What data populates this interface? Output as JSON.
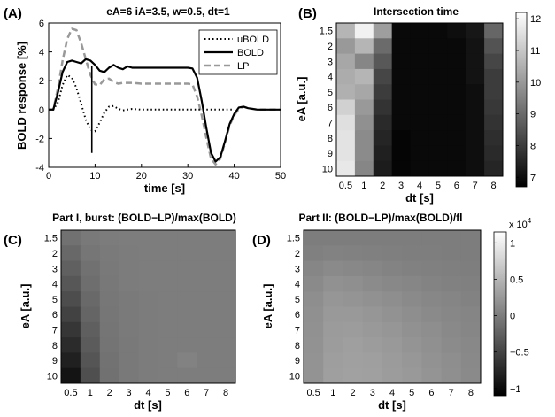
{
  "panels": {
    "A": {
      "label": "(A)",
      "chart_data": {
        "type": "line",
        "title": "eA=6 iA=3.5, w=0.5, dt=1",
        "xlabel": "time [s]",
        "ylabel": "BOLD response [%]",
        "xlim": [
          0,
          50
        ],
        "ylim": [
          -4,
          6
        ],
        "xticks": [
          "0",
          "10",
          "20",
          "30",
          "40",
          "50"
        ],
        "yticks": [
          "-4",
          "-2",
          "0",
          "2",
          "4",
          "6"
        ],
        "legend": "top-right",
        "stim_marker": {
          "x": 9.3,
          "y": [
            -3.0,
            3.0
          ]
        },
        "series": [
          {
            "name": "uBOLD",
            "style": "dotted",
            "color": "#000000",
            "points": [
              [
                0,
                0
              ],
              [
                1,
                0
              ],
              [
                2,
                0.5
              ],
              [
                3,
                1.7
              ],
              [
                4,
                2.4
              ],
              [
                5,
                2.2
              ],
              [
                6,
                1.5
              ],
              [
                7,
                0.4
              ],
              [
                8,
                -0.7
              ],
              [
                9,
                -1.4
              ],
              [
                10,
                -1.5
              ],
              [
                11,
                -0.9
              ],
              [
                12,
                -0.2
              ],
              [
                13,
                0.2
              ],
              [
                14,
                0.25
              ],
              [
                15,
                0.05
              ],
              [
                16,
                -0.05
              ],
              [
                18,
                0.05
              ],
              [
                20,
                0
              ],
              [
                25,
                0
              ],
              [
                30,
                0
              ],
              [
                35,
                0
              ],
              [
                40,
                0
              ]
            ]
          },
          {
            "name": "BOLD",
            "style": "solid",
            "color": "#000000",
            "points": [
              [
                0,
                0
              ],
              [
                1,
                0
              ],
              [
                2,
                1.2
              ],
              [
                3,
                2.6
              ],
              [
                4,
                3.3
              ],
              [
                5,
                3.4
              ],
              [
                6,
                3.3
              ],
              [
                7,
                3.2
              ],
              [
                8,
                3.5
              ],
              [
                9,
                3.4
              ],
              [
                10,
                3.1
              ],
              [
                11,
                2.7
              ],
              [
                12,
                2.6
              ],
              [
                13,
                2.9
              ],
              [
                14,
                3.1
              ],
              [
                15,
                2.9
              ],
              [
                16,
                2.8
              ],
              [
                17,
                3.0
              ],
              [
                18,
                2.9
              ],
              [
                20,
                2.9
              ],
              [
                22,
                2.9
              ],
              [
                24,
                2.9
              ],
              [
                26,
                2.9
              ],
              [
                28,
                2.9
              ],
              [
                30,
                2.9
              ],
              [
                31,
                2.85
              ],
              [
                32,
                2.2
              ],
              [
                33,
                0.6
              ],
              [
                34,
                -1.3
              ],
              [
                35,
                -3.0
              ],
              [
                36,
                -3.6
              ],
              [
                37,
                -3.3
              ],
              [
                38,
                -2.2
              ],
              [
                39,
                -1.0
              ],
              [
                40,
                -0.3
              ],
              [
                41,
                0.15
              ],
              [
                42,
                0.2
              ],
              [
                43,
                0.1
              ],
              [
                45,
                0
              ],
              [
                50,
                0
              ]
            ]
          },
          {
            "name": "LP",
            "style": "dashed",
            "color": "#999999",
            "points": [
              [
                0,
                0
              ],
              [
                1,
                0
              ],
              [
                2,
                1.5
              ],
              [
                3,
                3.4
              ],
              [
                4,
                4.9
              ],
              [
                5,
                5.6
              ],
              [
                6,
                5.5
              ],
              [
                7,
                4.6
              ],
              [
                8,
                3.5
              ],
              [
                9,
                2.4
              ],
              [
                10,
                1.75
              ],
              [
                11,
                1.7
              ],
              [
                12,
                2.1
              ],
              [
                13,
                2.15
              ],
              [
                14,
                1.9
              ],
              [
                15,
                1.8
              ],
              [
                16,
                1.85
              ],
              [
                18,
                1.85
              ],
              [
                20,
                1.8
              ],
              [
                22,
                1.8
              ],
              [
                25,
                1.8
              ],
              [
                28,
                1.8
              ],
              [
                30,
                1.8
              ],
              [
                31,
                1.75
              ],
              [
                32,
                0.9
              ],
              [
                33,
                -0.4
              ],
              [
                34,
                -2.0
              ],
              [
                35,
                -3.4
              ],
              [
                36,
                -3.8
              ],
              [
                37,
                -3.4
              ],
              [
                38,
                -2.3
              ],
              [
                39,
                -1.1
              ],
              [
                40,
                -0.4
              ],
              [
                41,
                0.05
              ],
              [
                42,
                0.2
              ],
              [
                43,
                0.1
              ],
              [
                45,
                0
              ],
              [
                50,
                0
              ]
            ]
          }
        ]
      }
    },
    "B": {
      "label": "(B)",
      "chart_data": {
        "type": "heatmap",
        "title": "Intersection time",
        "xlabel": "dt [s]",
        "ylabel": "eA [a.u.]",
        "x": [
          "0.5",
          "1",
          "2",
          "3",
          "4",
          "5",
          "6",
          "7",
          "8"
        ],
        "y": [
          "1.5",
          "2",
          "3",
          "4",
          "5",
          "6",
          "7",
          "8",
          "9",
          "10"
        ],
        "colormap": "gray",
        "clim": [
          6.7,
          12.2
        ],
        "colorbar_ticks": [
          "7",
          "8",
          "9",
          "10",
          "11",
          "12"
        ],
        "values": [
          [
            10.6,
            11.9,
            10.1,
            6.9,
            6.9,
            6.9,
            7.0,
            7.2,
            8.9
          ],
          [
            10.0,
            10.6,
            9.0,
            6.9,
            6.9,
            6.9,
            6.9,
            7.1,
            8.5
          ],
          [
            10.3,
            9.6,
            8.6,
            6.9,
            6.9,
            6.9,
            6.9,
            7.1,
            8.2
          ],
          [
            10.4,
            10.6,
            8.2,
            6.9,
            6.9,
            6.9,
            6.9,
            7.1,
            8.0
          ],
          [
            10.5,
            10.3,
            8.0,
            6.9,
            6.9,
            6.9,
            6.9,
            7.0,
            8.0
          ],
          [
            11.2,
            10.0,
            7.8,
            6.9,
            6.9,
            6.9,
            6.9,
            7.0,
            7.9
          ],
          [
            11.5,
            9.8,
            7.6,
            6.9,
            6.9,
            6.9,
            6.9,
            7.0,
            7.8
          ],
          [
            11.6,
            9.7,
            7.5,
            6.8,
            6.9,
            6.9,
            6.9,
            7.0,
            7.7
          ],
          [
            11.6,
            9.7,
            7.4,
            6.8,
            6.9,
            6.9,
            6.9,
            7.0,
            7.6
          ],
          [
            11.7,
            9.6,
            7.3,
            6.8,
            6.9,
            6.9,
            6.9,
            7.0,
            7.5
          ]
        ]
      }
    },
    "C": {
      "label": "(C)",
      "chart_data": {
        "type": "heatmap",
        "title": "Part I, burst: (BOLD−LP)/max(BOLD)",
        "xlabel": "dt [s]",
        "ylabel": "eA [a.u.]",
        "x": [
          "0.5",
          "1",
          "2",
          "3",
          "4",
          "5",
          "6",
          "7",
          "8"
        ],
        "y": [
          "1.5",
          "2",
          "3",
          "4",
          "5",
          "6",
          "7",
          "8",
          "9",
          "10"
        ],
        "colormap": "gray",
        "clim": [
          -1.1,
          1.15
        ],
        "values": [
          [
            -0.1,
            -0.03,
            -0.01,
            0.0,
            0.0,
            0.0,
            0.0,
            0.0,
            0.0
          ],
          [
            -0.18,
            -0.06,
            -0.02,
            -0.01,
            0.0,
            0.0,
            0.0,
            0.0,
            0.0
          ],
          [
            -0.25,
            -0.1,
            -0.03,
            -0.01,
            0.0,
            0.0,
            0.0,
            0.0,
            0.0
          ],
          [
            -0.33,
            -0.13,
            -0.04,
            -0.01,
            0.0,
            0.0,
            0.0,
            0.0,
            0.0
          ],
          [
            -0.42,
            -0.17,
            -0.05,
            -0.02,
            -0.01,
            0.0,
            0.0,
            0.0,
            0.0
          ],
          [
            -0.52,
            -0.21,
            -0.06,
            -0.02,
            -0.01,
            0.0,
            0.0,
            0.0,
            0.0
          ],
          [
            -0.62,
            -0.26,
            -0.07,
            -0.02,
            -0.01,
            0.0,
            0.0,
            0.0,
            0.0
          ],
          [
            -0.72,
            -0.3,
            -0.08,
            -0.03,
            -0.01,
            0.0,
            0.0,
            0.0,
            0.0
          ],
          [
            -0.82,
            -0.35,
            -0.09,
            -0.03,
            -0.01,
            0.0,
            0.05,
            0.0,
            0.0
          ],
          [
            -0.92,
            -0.4,
            -0.1,
            -0.03,
            -0.01,
            0.0,
            0.0,
            0.0,
            0.0
          ]
        ]
      }
    },
    "D": {
      "label": "(D)",
      "chart_data": {
        "type": "heatmap",
        "title": "Part II: (BOLD−LP)/max(BOLD)/fl",
        "xlabel": "dt [s]",
        "ylabel": "eA [a.u.]",
        "x": [
          "0.5",
          "1",
          "2",
          "3",
          "4",
          "5",
          "6",
          "7",
          "8"
        ],
        "y": [
          "1.5",
          "2",
          "3",
          "4",
          "5",
          "6",
          "7",
          "8",
          "9",
          "10"
        ],
        "colormap": "gray",
        "clim": [
          -1.1,
          1.15
        ],
        "colorbar_ticks": [
          "−1",
          "−0.5",
          "0",
          "0.5",
          "1"
        ],
        "colorbar_exponent": "x 10",
        "colorbar_exponent_power": "4",
        "values": [
          [
            0.0,
            0.0,
            0.0,
            0.0,
            0.0,
            0.0,
            0.0,
            0.0,
            0.0
          ],
          [
            0.03,
            0.05,
            0.04,
            0.03,
            0.02,
            0.01,
            0.01,
            0.0,
            0.0
          ],
          [
            0.08,
            0.12,
            0.1,
            0.08,
            0.06,
            0.04,
            0.03,
            0.02,
            0.01
          ],
          [
            0.12,
            0.18,
            0.16,
            0.13,
            0.1,
            0.08,
            0.06,
            0.04,
            0.03
          ],
          [
            0.15,
            0.22,
            0.21,
            0.18,
            0.15,
            0.12,
            0.09,
            0.07,
            0.05
          ],
          [
            0.17,
            0.25,
            0.25,
            0.22,
            0.19,
            0.15,
            0.12,
            0.09,
            0.07
          ],
          [
            0.18,
            0.27,
            0.28,
            0.25,
            0.22,
            0.18,
            0.15,
            0.11,
            0.08
          ],
          [
            0.19,
            0.28,
            0.3,
            0.28,
            0.25,
            0.21,
            0.17,
            0.13,
            0.1
          ],
          [
            0.2,
            0.29,
            0.31,
            0.3,
            0.27,
            0.23,
            0.19,
            0.15,
            0.11
          ],
          [
            0.2,
            0.3,
            0.32,
            0.31,
            0.28,
            0.25,
            0.21,
            0.16,
            0.12
          ]
        ]
      }
    }
  }
}
